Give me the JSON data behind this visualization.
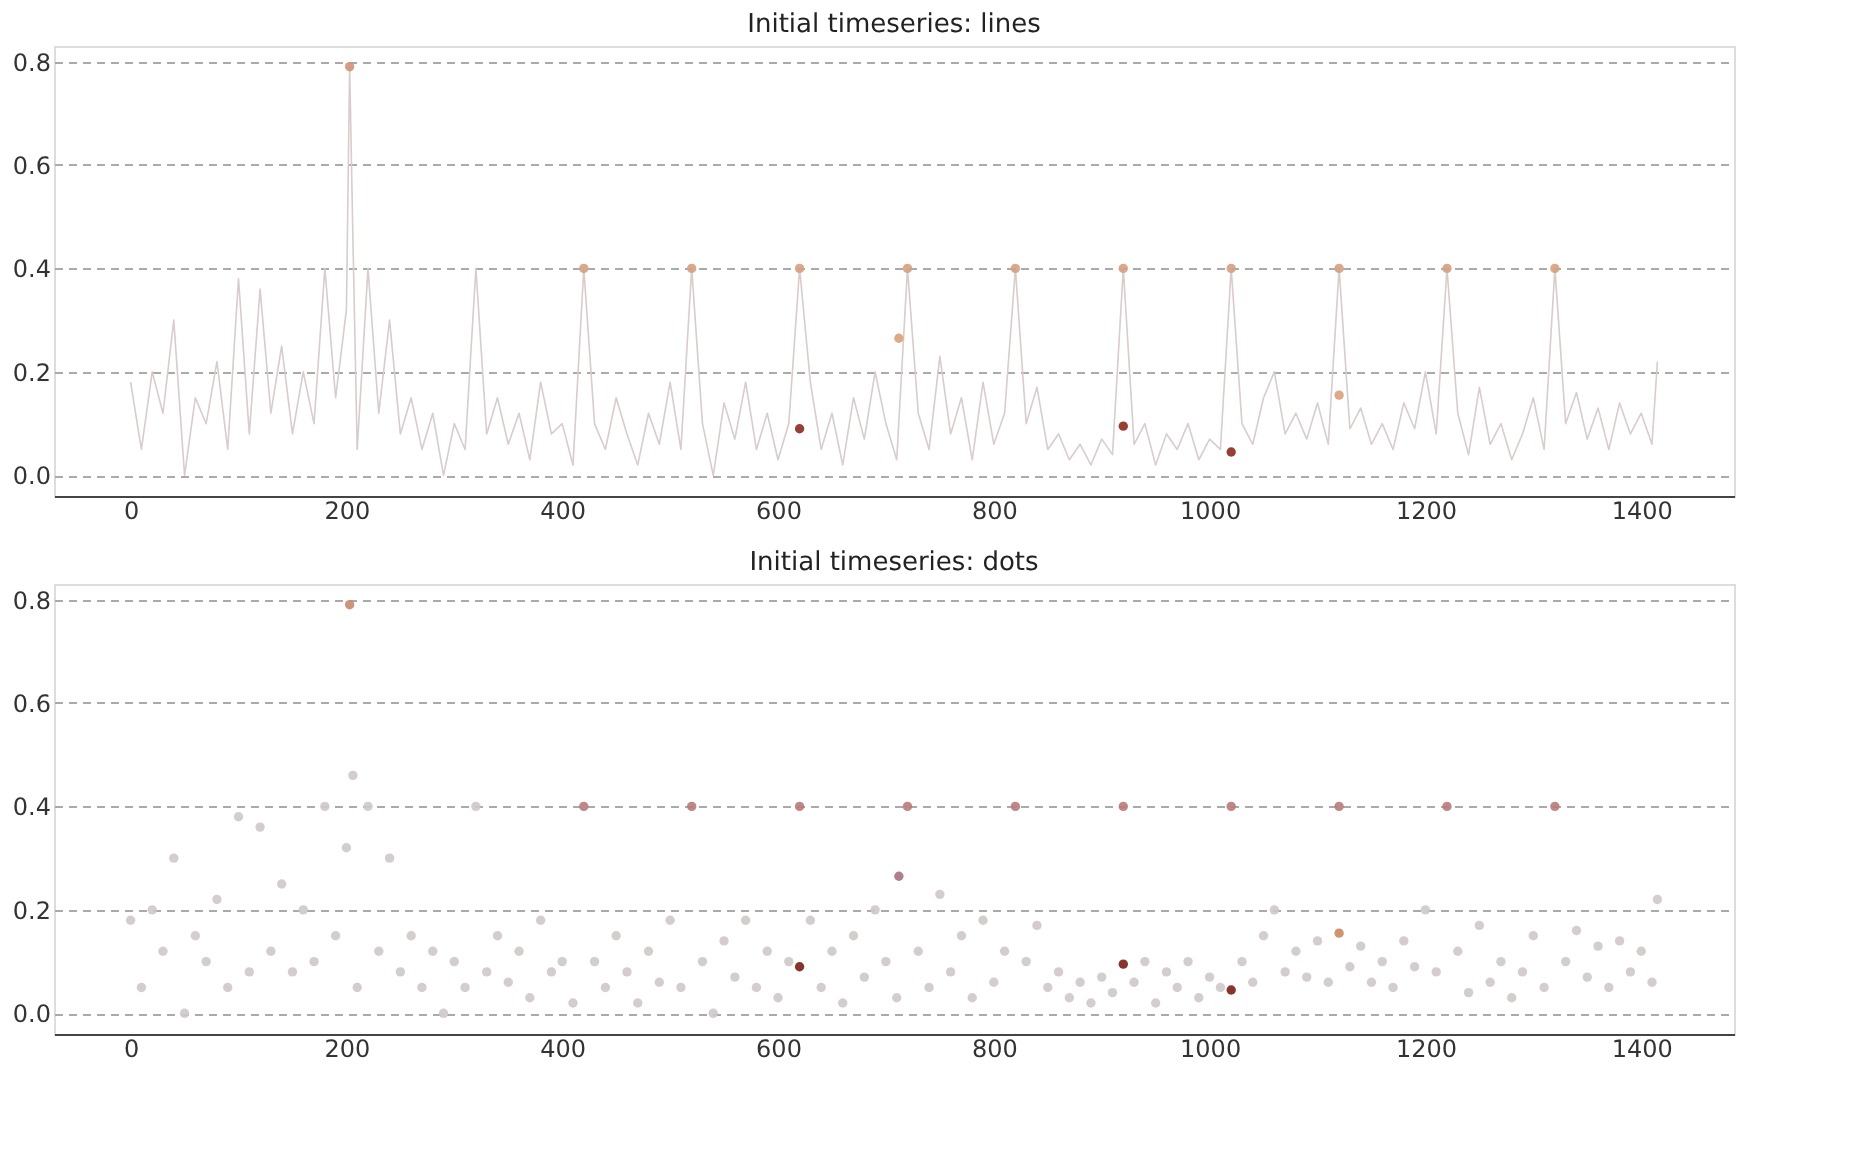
{
  "chart_data": [
    {
      "type": "line",
      "title": "Initial timeseries: lines",
      "xlim": [
        -71,
        1486
      ],
      "xticks": [
        0,
        200,
        400,
        600,
        800,
        1000,
        1200,
        1400
      ],
      "ylim": [
        -0.04,
        0.83
      ],
      "yticks": [
        {
          "value": 0,
          "label": "0.0"
        },
        0.2,
        0.4,
        0.6,
        0.8
      ],
      "grid": "y",
      "series": [
        {
          "color": "#d8cccc",
          "line_style": "solid",
          "x": [
            0,
            10,
            20,
            30,
            40,
            50,
            60,
            70,
            80,
            90,
            100,
            110,
            120,
            130,
            140,
            150,
            160,
            170,
            180,
            190,
            200,
            203,
            206,
            210,
            220,
            230,
            240,
            250,
            260,
            270,
            280,
            290,
            300,
            310,
            320,
            330,
            340,
            350,
            360,
            370,
            380,
            390,
            400,
            410,
            420,
            430,
            440,
            450,
            460,
            470,
            480,
            490,
            500,
            510,
            520,
            530,
            540,
            550,
            560,
            570,
            580,
            590,
            600,
            610,
            620,
            630,
            640,
            650,
            660,
            670,
            680,
            690,
            700,
            710,
            720,
            730,
            740,
            750,
            760,
            770,
            780,
            790,
            800,
            810,
            820,
            830,
            840,
            850,
            860,
            870,
            880,
            890,
            900,
            910,
            920,
            930,
            940,
            950,
            960,
            970,
            980,
            990,
            1000,
            1010,
            1020,
            1030,
            1040,
            1050,
            1060,
            1070,
            1080,
            1090,
            1100,
            1110,
            1120,
            1130,
            1140,
            1150,
            1160,
            1170,
            1180,
            1190,
            1200,
            1210,
            1220,
            1230,
            1240,
            1250,
            1260,
            1270,
            1280,
            1290,
            1300,
            1310,
            1320,
            1330,
            1340,
            1350,
            1360,
            1370,
            1380,
            1390,
            1400,
            1410,
            1415
          ],
          "values": [
            0.18,
            0.05,
            0.2,
            0.12,
            0.3,
            0.0,
            0.15,
            0.1,
            0.22,
            0.05,
            0.38,
            0.08,
            0.36,
            0.12,
            0.25,
            0.08,
            0.2,
            0.1,
            0.4,
            0.15,
            0.32,
            0.79,
            0.46,
            0.05,
            0.4,
            0.12,
            0.3,
            0.08,
            0.15,
            0.05,
            0.12,
            0.0,
            0.1,
            0.05,
            0.4,
            0.08,
            0.15,
            0.06,
            0.12,
            0.03,
            0.18,
            0.08,
            0.1,
            0.02,
            0.4,
            0.1,
            0.05,
            0.15,
            0.08,
            0.02,
            0.12,
            0.06,
            0.18,
            0.05,
            0.4,
            0.1,
            0.0,
            0.14,
            0.07,
            0.18,
            0.05,
            0.12,
            0.03,
            0.1,
            0.4,
            0.18,
            0.05,
            0.12,
            0.02,
            0.15,
            0.07,
            0.2,
            0.1,
            0.03,
            0.4,
            0.12,
            0.05,
            0.23,
            0.08,
            0.15,
            0.03,
            0.18,
            0.06,
            0.12,
            0.4,
            0.1,
            0.17,
            0.05,
            0.08,
            0.03,
            0.06,
            0.02,
            0.07,
            0.04,
            0.4,
            0.06,
            0.1,
            0.02,
            0.08,
            0.05,
            0.1,
            0.03,
            0.07,
            0.05,
            0.4,
            0.1,
            0.06,
            0.15,
            0.2,
            0.08,
            0.12,
            0.07,
            0.14,
            0.06,
            0.4,
            0.09,
            0.13,
            0.06,
            0.1,
            0.05,
            0.14,
            0.09,
            0.2,
            0.08,
            0.4,
            0.12,
            0.04,
            0.17,
            0.06,
            0.1,
            0.03,
            0.08,
            0.15,
            0.05,
            0.4,
            0.1,
            0.16,
            0.07,
            0.13,
            0.05,
            0.14,
            0.08,
            0.12,
            0.06,
            0.22
          ]
        },
        {
          "type": "scatter",
          "marker": "circle",
          "x": [
            203,
            420,
            520,
            620,
            720,
            820,
            920,
            1020,
            1120,
            1220,
            1320,
            712,
            1120,
            620,
            920,
            1020
          ],
          "values": [
            0.79,
            0.4,
            0.4,
            0.4,
            0.4,
            0.4,
            0.4,
            0.4,
            0.4,
            0.4,
            0.4,
            0.265,
            0.155,
            0.09,
            0.095,
            0.045
          ],
          "colors": [
            "#d4907a",
            "#d4a080",
            "#d4a080",
            "#d4a080",
            "#d4a080",
            "#d4a080",
            "#d4a080",
            "#d4a080",
            "#d4a080",
            "#d4a080",
            "#d4a080",
            "#d9a07a",
            "#d9a07a",
            "#8b2a1f",
            "#8b2a1f",
            "#8b2a1f"
          ]
        }
      ]
    },
    {
      "type": "scatter",
      "title": "Initial timeseries: dots",
      "xlim": [
        -71,
        1486
      ],
      "xticks": [
        0,
        200,
        400,
        600,
        800,
        1000,
        1200,
        1400
      ],
      "ylim": [
        -0.04,
        0.83
      ],
      "yticks": [
        {
          "value": 0,
          "label": "0.0"
        },
        0.2,
        0.4,
        0.6,
        0.8
      ],
      "grid": "y",
      "series": [
        {
          "marker": "circle",
          "color": "#cfc8c8",
          "x": [
            0,
            10,
            20,
            30,
            40,
            50,
            60,
            70,
            80,
            90,
            100,
            110,
            120,
            130,
            140,
            150,
            160,
            170,
            180,
            190,
            200,
            206,
            210,
            220,
            230,
            240,
            250,
            260,
            270,
            280,
            290,
            300,
            310,
            320,
            330,
            340,
            350,
            360,
            370,
            380,
            390,
            400,
            410,
            430,
            440,
            450,
            460,
            470,
            480,
            490,
            500,
            510,
            530,
            540,
            550,
            560,
            570,
            580,
            590,
            600,
            610,
            630,
            640,
            650,
            660,
            670,
            680,
            690,
            700,
            710,
            730,
            740,
            750,
            760,
            770,
            780,
            790,
            800,
            810,
            830,
            840,
            850,
            860,
            870,
            880,
            890,
            900,
            910,
            930,
            940,
            950,
            960,
            970,
            980,
            990,
            1000,
            1010,
            1030,
            1040,
            1050,
            1060,
            1070,
            1080,
            1090,
            1100,
            1110,
            1130,
            1140,
            1150,
            1160,
            1170,
            1180,
            1190,
            1200,
            1210,
            1230,
            1240,
            1250,
            1260,
            1270,
            1280,
            1290,
            1300,
            1310,
            1330,
            1340,
            1350,
            1360,
            1370,
            1380,
            1390,
            1400,
            1410,
            1415
          ],
          "values": [
            0.18,
            0.05,
            0.2,
            0.12,
            0.3,
            0.0,
            0.15,
            0.1,
            0.22,
            0.05,
            0.38,
            0.08,
            0.36,
            0.12,
            0.25,
            0.08,
            0.2,
            0.1,
            0.4,
            0.15,
            0.32,
            0.46,
            0.05,
            0.4,
            0.12,
            0.3,
            0.08,
            0.15,
            0.05,
            0.12,
            0.0,
            0.1,
            0.05,
            0.4,
            0.08,
            0.15,
            0.06,
            0.12,
            0.03,
            0.18,
            0.08,
            0.1,
            0.02,
            0.1,
            0.05,
            0.15,
            0.08,
            0.02,
            0.12,
            0.06,
            0.18,
            0.05,
            0.1,
            0.0,
            0.14,
            0.07,
            0.18,
            0.05,
            0.12,
            0.03,
            0.1,
            0.18,
            0.05,
            0.12,
            0.02,
            0.15,
            0.07,
            0.2,
            0.1,
            0.03,
            0.12,
            0.05,
            0.23,
            0.08,
            0.15,
            0.03,
            0.18,
            0.06,
            0.12,
            0.1,
            0.17,
            0.05,
            0.08,
            0.03,
            0.06,
            0.02,
            0.07,
            0.04,
            0.06,
            0.1,
            0.02,
            0.08,
            0.05,
            0.1,
            0.03,
            0.07,
            0.05,
            0.1,
            0.06,
            0.15,
            0.2,
            0.08,
            0.12,
            0.07,
            0.14,
            0.06,
            0.09,
            0.13,
            0.06,
            0.1,
            0.05,
            0.14,
            0.09,
            0.2,
            0.08,
            0.12,
            0.04,
            0.17,
            0.06,
            0.1,
            0.03,
            0.08,
            0.15,
            0.05,
            0.1,
            0.16,
            0.07,
            0.13,
            0.05,
            0.14,
            0.08,
            0.12,
            0.06,
            0.22
          ]
        },
        {
          "type": "scatter",
          "marker": "circle",
          "x": [
            203,
            420,
            520,
            620,
            720,
            820,
            920,
            1020,
            1120,
            1220,
            1320,
            712,
            1120,
            620,
            920,
            1020
          ],
          "values": [
            0.79,
            0.4,
            0.4,
            0.4,
            0.4,
            0.4,
            0.4,
            0.4,
            0.4,
            0.4,
            0.4,
            0.265,
            0.155,
            0.09,
            0.095,
            0.045
          ],
          "colors": [
            "#c98a6e",
            "#b97a7a",
            "#b97a7a",
            "#b97a7a",
            "#b97a7a",
            "#b97a7a",
            "#b97a7a",
            "#b97a7a",
            "#b97a7a",
            "#b97a7a",
            "#b97a7a",
            "#a87080",
            "#c98a5e",
            "#7a1f14",
            "#7a1f14",
            "#7a1f14"
          ]
        }
      ]
    }
  ]
}
